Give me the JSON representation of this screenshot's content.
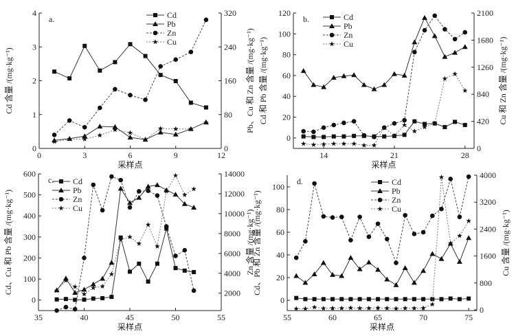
{
  "chart_data": [
    {
      "type": "line",
      "panel_label": "a.",
      "xlabel": "采样点",
      "ylabel_left": "Cd 含量 /(mg·kg⁻¹)",
      "ylabel_right": "Pb、Cu 和 Zn 含量 /(mg·kg⁻¹)",
      "xlim": [
        0,
        12
      ],
      "ylim_left": [
        0,
        4
      ],
      "ylim_right": [
        0,
        320
      ],
      "xticks": [
        0,
        3,
        6,
        9,
        12
      ],
      "yticks_left": [
        0,
        1,
        2,
        3,
        4
      ],
      "yticks_right": [
        0,
        80,
        160,
        240,
        320
      ],
      "legend_position": "top-right",
      "x": [
        1,
        2,
        3,
        4,
        5,
        6,
        7,
        8,
        9,
        10,
        11
      ],
      "series": [
        {
          "name": "Cd",
          "axis": "left",
          "marker": "square",
          "style": "solid",
          "values": [
            2.27,
            2.07,
            3.03,
            2.3,
            2.55,
            3.08,
            2.73,
            2.17,
            1.99,
            1.35,
            1.21
          ]
        },
        {
          "name": "Pb",
          "axis": "right",
          "marker": "triangle",
          "style": "solid",
          "values": [
            19,
            23,
            29,
            52,
            51,
            26,
            21,
            38,
            33,
            46,
            62
          ]
        },
        {
          "name": "Zn",
          "axis": "right",
          "marker": "circle",
          "style": "dashed",
          "values": [
            32,
            66,
            50,
            96,
            140,
            126,
            115,
            194,
            210,
            228,
            304
          ]
        },
        {
          "name": "Cu",
          "axis": "right",
          "marker": "star",
          "style": "dashed",
          "values": [
            16,
            22,
            22,
            31,
            44,
            37,
            21,
            47,
            46,
            46,
            61
          ]
        }
      ]
    },
    {
      "type": "line",
      "panel_label": "b.",
      "xlabel": "采样点",
      "ylabel_left": "Cd 和 Pb 含量 /(mg·kg⁻¹)",
      "ylabel_right": "Cu 和 Zn 含量 /(mg·kg⁻¹)",
      "xlim": [
        11,
        28.9
      ],
      "ylim_left": [
        -10,
        120
      ],
      "ylim_right": [
        0,
        2100
      ],
      "xticks": [
        14,
        21,
        28
      ],
      "yticks_left": [
        0,
        20,
        40,
        60,
        80,
        100,
        120
      ],
      "yticks_right": [
        0,
        420,
        840,
        1260,
        1680,
        2100
      ],
      "legend_position": "top-left",
      "x": [
        12,
        13,
        14,
        15,
        16,
        17,
        18,
        19,
        20,
        21,
        22,
        23,
        24,
        25,
        26,
        27,
        28
      ],
      "series": [
        {
          "name": "Cd",
          "axis": "left",
          "marker": "square",
          "style": "solid",
          "values": [
            1.5,
            1,
            1,
            1.5,
            1.5,
            2,
            2,
            1.5,
            1.5,
            2,
            3,
            16,
            13.5,
            14,
            10.5,
            15.5,
            12.5
          ]
        },
        {
          "name": "Pb",
          "axis": "left",
          "marker": "triangle",
          "style": "solid",
          "values": [
            64.5,
            51,
            49,
            58,
            59.5,
            60.5,
            51,
            47,
            51,
            61.5,
            60,
            92,
            115.5,
            98,
            78,
            82,
            87.5
          ]
        },
        {
          "name": "Zn",
          "axis": "right",
          "marker": "circle",
          "style": "dashed",
          "values": [
            266,
            258,
            323,
            363,
            396,
            420,
            202,
            178,
            323,
            388,
            436,
            1494,
            1833,
            2059,
            1849,
            1696,
            1801
          ]
        },
        {
          "name": "Cu",
          "axis": "right",
          "marker": "star",
          "style": "dashed",
          "values": [
            73,
            57,
            65,
            73,
            73,
            73,
            48,
            48,
            323,
            194,
            363,
            266,
            331,
            388,
            1082,
            1155,
            897
          ]
        }
      ]
    },
    {
      "type": "line",
      "panel_label": "c.",
      "xlabel": "采样点",
      "ylabel_left": "Cd、Cu 和 Pb 含量 /(mg·kg⁻¹)",
      "ylabel_right": "Zn 含量 /(mg·kg⁻¹)",
      "xlim": [
        35,
        55
      ],
      "ylim_left": [
        -50,
        600
      ],
      "ylim_right": [
        253,
        14000
      ],
      "xticks": [
        35,
        40,
        45,
        50,
        55
      ],
      "yticks_left": [
        0,
        100,
        200,
        300,
        400,
        500,
        600
      ],
      "yticks_right": [
        2000,
        4000,
        6000,
        8000,
        10000,
        12000,
        14000
      ],
      "legend_position": "top-left",
      "x": [
        37,
        38,
        39,
        40,
        41,
        42,
        43,
        44,
        45,
        46,
        47,
        48,
        49,
        50,
        51,
        52
      ],
      "series": [
        {
          "name": "Cd",
          "axis": "left",
          "marker": "square",
          "style": "solid",
          "values": [
            3,
            5,
            1,
            2,
            7,
            9,
            15,
            297,
            135,
            173,
            88,
            173,
            340,
            152,
            140,
            133
          ]
        },
        {
          "name": "Pb",
          "axis": "left",
          "marker": "triangle",
          "style": "solid",
          "values": [
            47,
            103,
            35,
            50,
            75,
            102,
            178,
            530,
            462,
            487,
            540,
            547,
            523,
            502,
            457,
            440
          ]
        },
        {
          "name": "Zn",
          "axis": "right",
          "marker": "circle",
          "style": "dashed",
          "values": [
            260,
            600,
            390,
            5550,
            12900,
            10340,
            13730,
            13370,
            10620,
            12240,
            12300,
            11820,
            8710,
            5750,
            6320,
            2260
          ]
        },
        {
          "name": "Cu",
          "axis": "left",
          "marker": "star",
          "style": "dashed",
          "values": [
            45,
            93,
            63,
            28,
            58,
            65,
            123,
            287,
            300,
            268,
            358,
            255,
            517,
            592,
            500,
            528
          ]
        }
      ]
    },
    {
      "type": "line",
      "panel_label": "d.",
      "xlabel": "采样点",
      "ylabel_left": "Cd、Pb 和 Zn 含量 /(mg·kg⁻¹)",
      "ylabel_right": "Cu 含量 /(mg·kg⁻¹)",
      "xlim": [
        55,
        75.9
      ],
      "ylim_left": [
        -9.1,
        110.3
      ],
      "ylim_right": [
        -20,
        4000
      ],
      "xticks": [
        55,
        60,
        65,
        70,
        75
      ],
      "yticks_left": [
        0,
        20,
        40,
        60,
        80,
        100
      ],
      "yticks_right": [
        0,
        800,
        1600,
        2400,
        3200,
        4000
      ],
      "legend_position": "top-center",
      "x": [
        56,
        57,
        58,
        59,
        60,
        61,
        62,
        63,
        64,
        65,
        66,
        67,
        68,
        69,
        70,
        71,
        72,
        73,
        74,
        75
      ],
      "series": [
        {
          "name": "Cd",
          "axis": "left",
          "marker": "square",
          "style": "solid",
          "values": [
            2,
            1,
            1,
            1,
            1,
            1,
            1,
            1,
            1,
            1,
            1,
            1,
            1,
            1,
            1,
            1,
            1,
            1.5,
            1,
            1.5
          ]
        },
        {
          "name": "Pb",
          "axis": "left",
          "marker": "triangle",
          "style": "solid",
          "values": [
            21.5,
            15.5,
            23,
            33,
            22.5,
            21.5,
            37.5,
            27.5,
            33.5,
            27,
            18.5,
            13.5,
            28.5,
            15.5,
            26,
            41,
            36.5,
            50,
            34,
            55
          ]
        },
        {
          "name": "Zn",
          "axis": "left",
          "marker": "circle",
          "style": "dashed",
          "values": [
            37.5,
            52,
            103,
            74,
            73,
            73.5,
            53,
            73.5,
            56,
            67.5,
            54,
            33,
            75,
            58.5,
            60,
            74.5,
            80.5,
            107,
            73.5,
            109
          ]
        },
        {
          "name": "Cu",
          "axis": "right",
          "marker": "star",
          "style": "dashed",
          "values": [
            35,
            35,
            80,
            45,
            50,
            50,
            60,
            50,
            50,
            60,
            50,
            40,
            50,
            50,
            55,
            165,
            3940,
            1980,
            2200,
            2640
          ]
        }
      ]
    }
  ]
}
